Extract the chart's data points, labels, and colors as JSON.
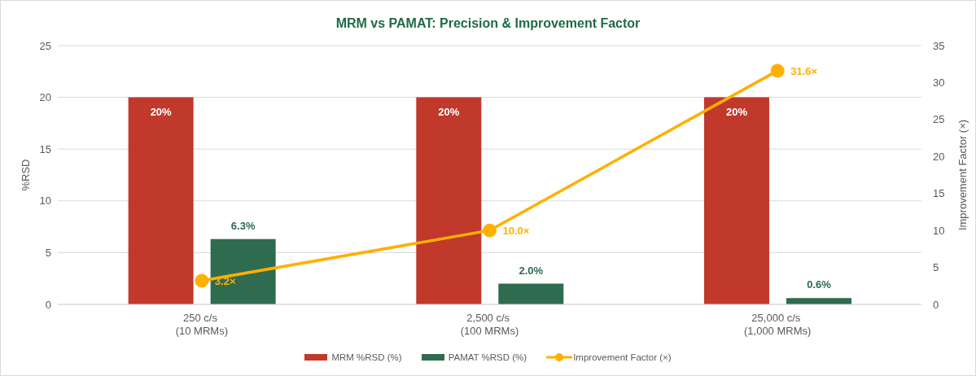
{
  "chart_data": {
    "type": "bar",
    "title": "MRM vs PAMAT: Precision & Improvement Factor",
    "categories": [
      "250 c/s\n(10 MRMs)",
      "2,500 c/s\n(100 MRMs)",
      "25,000 c/s\n(1,000 MRMs)"
    ],
    "series": [
      {
        "name": "MRM %RSD (%)",
        "color": "#c0392b",
        "values": [
          20,
          20,
          20
        ],
        "value_labels": [
          "20%",
          "20%",
          "20%"
        ]
      },
      {
        "name": "PAMAT %RSD (%)",
        "color": "#2e6b4f",
        "values": [
          6.3,
          2.0,
          0.6
        ],
        "value_labels": [
          "6.3%",
          "2.0%",
          "0.6%"
        ]
      },
      {
        "name": "Improvement Factor (×)",
        "type": "line",
        "axis": "y2",
        "color": "#ffb000",
        "values": [
          3.2,
          10.0,
          31.6
        ],
        "value_labels": [
          "3.2×",
          "10.0×",
          "31.6×"
        ]
      }
    ],
    "ylabel": "%RSD",
    "y2label": "Improvement Factor (×)",
    "ylim": [
      0,
      25
    ],
    "yticks": [
      0,
      5,
      10,
      15,
      20,
      25
    ],
    "y2lim": [
      0,
      35
    ],
    "y2ticks": [
      0,
      5,
      10,
      15,
      20,
      25,
      30,
      35
    ],
    "grid": "y",
    "legend": "bottom",
    "marker": "circle"
  }
}
